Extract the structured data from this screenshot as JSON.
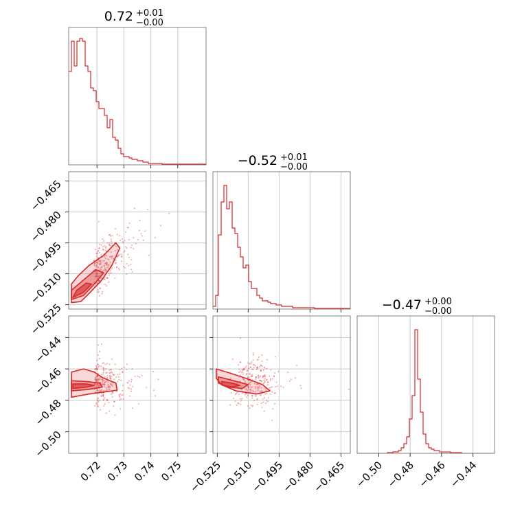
{
  "chart_data": {
    "type": "corner",
    "color": "#d62728",
    "fill_color_light": "#f5c6c7",
    "fill_color_mid": "#e8898b",
    "parameters": [
      {
        "title": {
          "median": "0.72",
          "plus": "+0.01",
          "minus": "−0.00"
        },
        "range": [
          0.7105,
          0.7595
        ],
        "ticks": [
          0.72,
          0.73,
          0.74,
          0.75
        ],
        "tick_labels": [
          "0.72",
          "0.73",
          "0.74",
          "0.75"
        ],
        "hist_counts": [
          0.68,
          0.9,
          0.72,
          0.9,
          0.92,
          0.9,
          0.72,
          0.68,
          0.56,
          0.54,
          0.46,
          0.41,
          0.41,
          0.36,
          0.27,
          0.33,
          0.2,
          0.18,
          0.12,
          0.08,
          0.06,
          0.06,
          0.05,
          0.04,
          0.04,
          0.03,
          0.03,
          0.02,
          0.02,
          0.01,
          0.01,
          0.01,
          0.01,
          0.01,
          0.005,
          0.005,
          0.005,
          0.005,
          0.005,
          0.005,
          0.005,
          0.005,
          0.005,
          0.005,
          0.005,
          0.005,
          0.005,
          0.005,
          0.005,
          0.005
        ]
      },
      {
        "title": {
          "median": "−0.52",
          "plus": "+0.01",
          "minus": "−0.00"
        },
        "range": [
          -0.5258,
          -0.4618
        ],
        "ticks": [
          -0.525,
          -0.51,
          -0.495,
          -0.48,
          -0.465
        ],
        "tick_labels": [
          "−0.525",
          "−0.510",
          "−0.495",
          "−0.480",
          "−0.465"
        ],
        "hist_counts": [
          0.02,
          0.1,
          0.54,
          0.78,
          0.9,
          0.73,
          0.78,
          0.59,
          0.55,
          0.45,
          0.38,
          0.3,
          0.32,
          0.2,
          0.15,
          0.15,
          0.1,
          0.08,
          0.06,
          0.06,
          0.05,
          0.04,
          0.04,
          0.03,
          0.03,
          0.02,
          0.02,
          0.02,
          0.02,
          0.01,
          0.01,
          0.01,
          0.01,
          0.01,
          0.01,
          0.01,
          0.01,
          0.005,
          0.005,
          0.005,
          0.005,
          0.005,
          0.005,
          0.005,
          0.005,
          0.005,
          0.005,
          0.005,
          0.005,
          0.005
        ]
      },
      {
        "title": {
          "median": "−0.47",
          "plus": "+0.00",
          "minus": "−0.00"
        },
        "range": [
          -0.512,
          -0.428
        ],
        "ticks": [
          -0.5,
          -0.48,
          -0.46,
          -0.44
        ],
        "tick_labels": [
          "−0.50",
          "−0.48",
          "−0.46",
          "−0.44"
        ],
        "hist_counts": [
          0,
          0,
          0,
          0,
          0,
          0,
          0,
          0,
          0,
          0,
          0,
          0.005,
          0.005,
          0.01,
          0.01,
          0.02,
          0.04,
          0.07,
          0.12,
          0.25,
          0.42,
          0.9,
          0.54,
          0.3,
          0.14,
          0.07,
          0.04,
          0.03,
          0.02,
          0.02,
          0.01,
          0.01,
          0.01,
          0.01,
          0.005,
          0.005,
          0.005,
          0.005,
          0,
          0,
          0,
          0,
          0,
          0,
          0,
          0,
          0,
          0,
          0,
          0
        ]
      }
    ],
    "pairs": [
      {
        "x_param": 0,
        "y_param": 1,
        "contours": [
          {
            "level": "outer",
            "points": [
              [
                0.7105,
                -0.524
              ],
              [
                0.714,
                -0.5235
              ],
              [
                0.7175,
                -0.519
              ],
              [
                0.7215,
                -0.5135
              ],
              [
                0.7255,
                -0.506
              ],
              [
                0.7285,
                -0.4975
              ],
              [
                0.727,
                -0.495
              ],
              [
                0.7225,
                -0.501
              ],
              [
                0.717,
                -0.506
              ],
              [
                0.713,
                -0.511
              ],
              [
                0.7105,
                -0.515
              ]
            ]
          },
          {
            "level": "mid",
            "points": [
              [
                0.7105,
                -0.5225
              ],
              [
                0.715,
                -0.5205
              ],
              [
                0.719,
                -0.515
              ],
              [
                0.7225,
                -0.5095
              ],
              [
                0.7195,
                -0.508
              ],
              [
                0.715,
                -0.513
              ],
              [
                0.7105,
                -0.518
              ]
            ]
          },
          {
            "level": "inner",
            "points": [
              [
                0.711,
                -0.5215
              ],
              [
                0.715,
                -0.519
              ],
              [
                0.718,
                -0.515
              ],
              [
                0.716,
                -0.5145
              ],
              [
                0.7125,
                -0.518
              ]
            ]
          }
        ]
      },
      {
        "x_param": 0,
        "y_param": 2,
        "contours": [
          {
            "level": "outer",
            "points": [
              [
                0.7105,
                -0.478
              ],
              [
                0.717,
                -0.476
              ],
              [
                0.7235,
                -0.4745
              ],
              [
                0.7275,
                -0.4735
              ],
              [
                0.727,
                -0.469
              ],
              [
                0.722,
                -0.4655
              ],
              [
                0.719,
                -0.462
              ],
              [
                0.715,
                -0.46
              ],
              [
                0.7105,
                -0.462
              ]
            ]
          },
          {
            "level": "mid",
            "points": [
              [
                0.7105,
                -0.474
              ],
              [
                0.717,
                -0.473
              ],
              [
                0.722,
                -0.4715
              ],
              [
                0.721,
                -0.469
              ],
              [
                0.716,
                -0.468
              ],
              [
                0.7105,
                -0.4675
              ]
            ]
          },
          {
            "level": "inner",
            "points": [
              [
                0.711,
                -0.4725
              ],
              [
                0.7165,
                -0.4715
              ],
              [
                0.719,
                -0.4705
              ],
              [
                0.716,
                -0.4695
              ],
              [
                0.711,
                -0.4695
              ]
            ]
          }
        ]
      },
      {
        "x_param": 1,
        "y_param": 2,
        "contours": [
          {
            "level": "outer",
            "points": [
              [
                -0.5255,
                -0.46
              ],
              [
                -0.518,
                -0.463
              ],
              [
                -0.51,
                -0.4665
              ],
              [
                -0.503,
                -0.47
              ],
              [
                -0.4995,
                -0.474
              ],
              [
                -0.506,
                -0.476
              ],
              [
                -0.516,
                -0.474
              ],
              [
                -0.523,
                -0.47
              ],
              [
                -0.5255,
                -0.466
              ]
            ]
          },
          {
            "level": "mid",
            "points": [
              [
                -0.5245,
                -0.465
              ],
              [
                -0.517,
                -0.4675
              ],
              [
                -0.51,
                -0.47
              ],
              [
                -0.513,
                -0.4725
              ],
              [
                -0.52,
                -0.4715
              ],
              [
                -0.5245,
                -0.469
              ]
            ]
          },
          {
            "level": "inner",
            "points": [
              [
                -0.523,
                -0.468
              ],
              [
                -0.518,
                -0.469
              ],
              [
                -0.514,
                -0.4705
              ],
              [
                -0.518,
                -0.4715
              ],
              [
                -0.5225,
                -0.4705
              ]
            ]
          }
        ]
      }
    ]
  }
}
